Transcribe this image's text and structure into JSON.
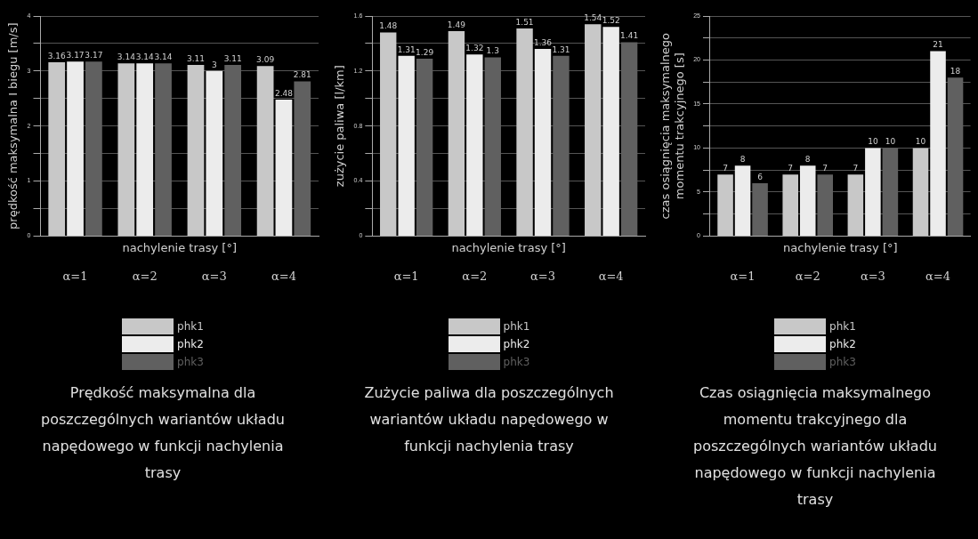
{
  "chart_data": [
    {
      "type": "bar",
      "title": "Prędkość maksymalna dla poszczególnych wariantów układu  napędowego w funkcji nachylenia trasy",
      "xlabel": "nachylenie trasy [°]",
      "ylabel": "prędkość maksymalna I biegu [m/s]",
      "categories": [
        "α=1",
        "α=2",
        "α=3",
        "α=4"
      ],
      "series": [
        {
          "name": "phk1",
          "color": "#c8c8c8",
          "values": [
            3.16,
            3.14,
            3.11,
            3.09
          ]
        },
        {
          "name": "phk2",
          "color": "#ececec",
          "values": [
            3.17,
            3.14,
            3,
            2.48
          ]
        },
        {
          "name": "phk3",
          "color": "#606060",
          "values": [
            3.17,
            3.14,
            3.11,
            2.81
          ]
        }
      ],
      "ylim": [
        0,
        4
      ],
      "yticks": [
        0,
        {
          "value": 0.5,
          "label": null
        },
        1,
        {
          "value": 1.5,
          "label": null
        },
        2,
        {
          "value": 2.5,
          "label": null
        },
        3,
        {
          "value": 3.5,
          "label": null
        },
        4
      ],
      "grid": "y",
      "legend": "bottom",
      "data_labels": true
    },
    {
      "type": "bar",
      "title": "Zużycie paliwa dla poszczególnych wariantów układu  napędowego w funkcji nachylenia trasy",
      "xlabel": "nachylenie trasy [°]",
      "ylabel": "zużycie paliwa [l/km]",
      "categories": [
        "α=1",
        "α=2",
        "α=3",
        "α=4"
      ],
      "series": [
        {
          "name": "phk1",
          "color": "#c8c8c8",
          "values": [
            1.48,
            1.49,
            1.51,
            1.54
          ]
        },
        {
          "name": "phk2",
          "color": "#ececec",
          "values": [
            1.31,
            1.32,
            1.36,
            1.52
          ]
        },
        {
          "name": "phk3",
          "color": "#606060",
          "values": [
            1.29,
            1.3,
            1.31,
            1.41
          ]
        }
      ],
      "ylim": [
        0,
        1.6
      ],
      "yticks": [
        0,
        {
          "value": 0.2,
          "label": null
        },
        0.4,
        {
          "value": 0.6,
          "label": null
        },
        0.8,
        {
          "value": 1.0,
          "label": null
        },
        1.2,
        {
          "value": 1.4,
          "label": null
        },
        1.6
      ],
      "grid": "y",
      "legend": "bottom",
      "data_labels": true
    },
    {
      "type": "bar",
      "title": "Czas osiągnięcia maksymalnego momentu trakcyjnego dla poszczególnych wariantów układu napędowego w funkcji nachylenia trasy",
      "xlabel": "nachylenie trasy [°]",
      "ylabel": "czas osiągnięcia maksymalnego momentu trakcyjnego [s]",
      "categories": [
        "α=1",
        "α=2",
        "α=3",
        "α=4"
      ],
      "series": [
        {
          "name": "phk1",
          "color": "#c8c8c8",
          "values": [
            7,
            7,
            7,
            10
          ]
        },
        {
          "name": "phk2",
          "color": "#ececec",
          "values": [
            8,
            8,
            10,
            21
          ]
        },
        {
          "name": "phk3",
          "color": "#606060",
          "values": [
            6,
            7,
            10,
            18
          ]
        }
      ],
      "ylim": [
        0,
        25
      ],
      "yticks": [
        0,
        {
          "value": 2.5,
          "label": null
        },
        5,
        {
          "value": 7.5,
          "label": null
        },
        10,
        {
          "value": 12.5,
          "label": null
        },
        15,
        {
          "value": 17.5,
          "label": null
        },
        20,
        {
          "value": 22.5,
          "label": null
        },
        25
      ],
      "grid": "y",
      "legend": "bottom",
      "data_labels": true
    }
  ]
}
